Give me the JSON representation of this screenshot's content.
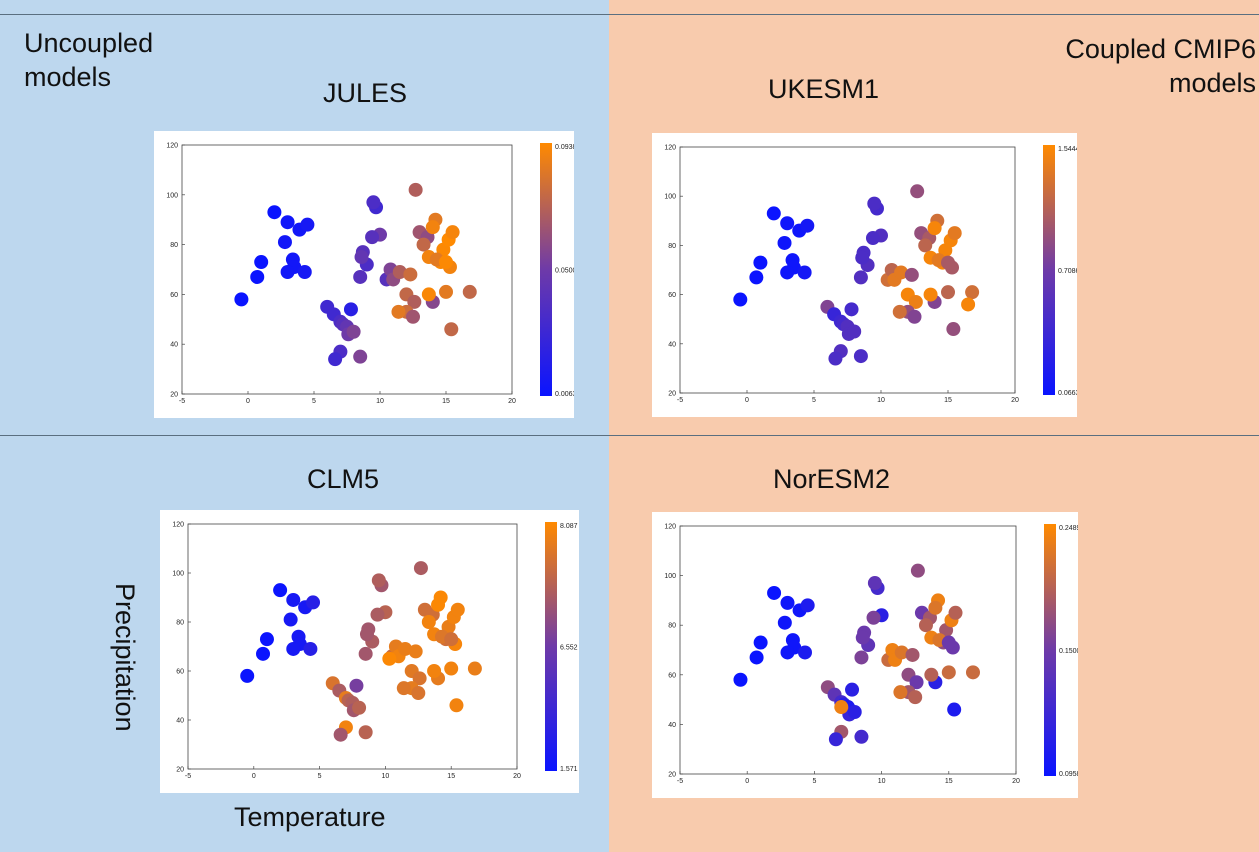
{
  "labels": {
    "uncoupled": "Uncoupled models",
    "coupled": "Coupled CMIP6 models",
    "ylabel": "Precipitation",
    "xlabel": "Temperature"
  },
  "colors": {
    "uncoupled_bg": "#bdd7ee",
    "coupled_bg": "#f8cbad",
    "low": "#0a14ff",
    "mid": "#6e3aa8",
    "high": "#ff8a00"
  },
  "chart_data": [
    {
      "type": "scatter",
      "title": "JULES",
      "xlim": [
        -5,
        20
      ],
      "ylim": [
        20,
        120
      ],
      "xticks": [
        "-5",
        "0",
        "5",
        "10",
        "15",
        "20"
      ],
      "yticks": [
        "20",
        "40",
        "60",
        "80",
        "100",
        "120"
      ],
      "colorbar": [
        "0.0063",
        "0.0500",
        "0.0938"
      ],
      "x": [
        -0.5,
        1,
        0.7,
        2,
        3,
        2.8,
        3.4,
        3.5,
        4.3,
        3,
        3.9,
        4.5,
        6,
        6.5,
        7,
        7.2,
        7.5,
        7.6,
        8,
        7,
        6.6,
        8.5,
        7.8,
        8.5,
        9,
        8.7,
        9.7,
        9.5,
        10,
        9.4,
        8.6,
        10.5,
        10.8,
        11,
        11.5,
        12,
        12.6,
        12,
        11.4,
        12.5,
        12.7,
        13,
        13.6,
        13.3,
        14.2,
        14,
        13.7,
        14.6,
        14.8,
        15.3,
        15.2,
        14.3,
        15,
        15.5,
        15,
        14,
        16.8,
        15.4,
        12.3,
        13.7
      ],
      "y": [
        58,
        73,
        67,
        93,
        89,
        81,
        74,
        71,
        69,
        69,
        86,
        88,
        55,
        52,
        49,
        48,
        47,
        44,
        45,
        37,
        34,
        35,
        54,
        67,
        72,
        77,
        95,
        97,
        84,
        83,
        75,
        66,
        70,
        66,
        69,
        60,
        57,
        53,
        53,
        51,
        102,
        85,
        83,
        80,
        90,
        87,
        75,
        73,
        78,
        71,
        82,
        74,
        61,
        85,
        73,
        57,
        61,
        46,
        68,
        60
      ],
      "c": [
        0.006,
        0.006,
        0.006,
        0.006,
        0.009,
        0.01,
        0.01,
        0.01,
        0.012,
        0.01,
        0.01,
        0.012,
        0.03,
        0.03,
        0.035,
        0.04,
        0.045,
        0.05,
        0.055,
        0.035,
        0.03,
        0.055,
        0.02,
        0.04,
        0.035,
        0.04,
        0.03,
        0.035,
        0.05,
        0.04,
        0.045,
        0.04,
        0.055,
        0.06,
        0.07,
        0.075,
        0.07,
        0.078,
        0.085,
        0.065,
        0.07,
        0.065,
        0.06,
        0.075,
        0.085,
        0.09,
        0.09,
        0.092,
        0.093,
        0.09,
        0.094,
        0.085,
        0.085,
        0.091,
        0.093,
        0.057,
        0.075,
        0.075,
        0.078,
        0.092
      ]
    },
    {
      "type": "scatter",
      "title": "UKESM1",
      "xlim": [
        -5,
        20
      ],
      "ylim": [
        20,
        120
      ],
      "xticks": [
        "-5",
        "0",
        "5",
        "10",
        "15",
        "20"
      ],
      "yticks": [
        "20",
        "40",
        "60",
        "80",
        "100",
        "120"
      ],
      "colorbar": [
        "0.0663",
        "0.7086",
        "1.5444"
      ],
      "x": [
        -0.5,
        1,
        0.7,
        2,
        3,
        2.8,
        3.4,
        3.5,
        4.3,
        3,
        3.9,
        4.5,
        6,
        6.5,
        7,
        7.2,
        7.5,
        7.6,
        8,
        7,
        6.6,
        8.5,
        7.8,
        8.5,
        9,
        8.7,
        9.7,
        9.5,
        10,
        9.4,
        8.6,
        10.5,
        10.8,
        11,
        11.5,
        12,
        12.6,
        12,
        11.4,
        12.5,
        12.7,
        13,
        13.6,
        13.3,
        14.2,
        14,
        13.7,
        14.6,
        14.8,
        15.3,
        15.2,
        14.3,
        15,
        15.5,
        15,
        14,
        16.8,
        15.4,
        12.3,
        13.7,
        16.5
      ],
      "y": [
        58,
        73,
        67,
        93,
        89,
        81,
        74,
        71,
        69,
        69,
        86,
        88,
        55,
        52,
        49,
        48,
        47,
        44,
        45,
        37,
        34,
        35,
        54,
        67,
        72,
        77,
        95,
        97,
        84,
        83,
        75,
        66,
        70,
        66,
        69,
        60,
        57,
        53,
        53,
        51,
        102,
        85,
        83,
        80,
        90,
        87,
        75,
        73,
        78,
        71,
        82,
        74,
        61,
        85,
        73,
        57,
        61,
        46,
        68,
        60,
        56
      ],
      "c": [
        0.07,
        0.07,
        0.07,
        0.07,
        0.1,
        0.1,
        0.1,
        0.1,
        0.15,
        0.1,
        0.1,
        0.15,
        0.9,
        0.4,
        0.45,
        0.5,
        0.6,
        0.6,
        0.6,
        0.6,
        0.55,
        0.55,
        0.5,
        0.6,
        0.6,
        0.55,
        0.5,
        0.55,
        0.6,
        0.55,
        0.55,
        1.3,
        1.2,
        1.4,
        1.4,
        1.5,
        1.45,
        1.0,
        1.3,
        0.9,
        1.0,
        1.0,
        1.1,
        1.2,
        1.3,
        1.5,
        1.5,
        1.5,
        1.5,
        1.1,
        1.5,
        1.4,
        1.2,
        1.4,
        1.1,
        0.9,
        1.3,
        1.0,
        1.0,
        1.5,
        1.5
      ]
    },
    {
      "type": "scatter",
      "title": "CLM5",
      "xlim": [
        -5,
        20
      ],
      "ylim": [
        20,
        120
      ],
      "xticks": [
        "-5",
        "0",
        "5",
        "10",
        "15",
        "20"
      ],
      "yticks": [
        "20",
        "40",
        "60",
        "80",
        "100",
        "120"
      ],
      "colorbar": [
        "1.571",
        "6.552",
        "8.087"
      ],
      "x": [
        -0.5,
        1,
        0.7,
        2,
        3,
        2.8,
        3.4,
        3.5,
        4.3,
        3,
        3.9,
        4.5,
        6,
        6.5,
        7,
        7.2,
        7.5,
        7.6,
        8,
        7,
        6.6,
        8.5,
        7.8,
        8.5,
        9,
        8.7,
        9.7,
        9.5,
        10,
        9.4,
        8.6,
        10.5,
        10.8,
        11,
        11.5,
        12,
        12.6,
        12,
        11.4,
        12.5,
        12.7,
        13,
        13.6,
        13.3,
        14.2,
        14,
        13.7,
        14.6,
        14.8,
        15.3,
        15.2,
        14.3,
        15,
        15.5,
        15,
        14,
        16.8,
        15.4,
        12.3,
        13.7,
        10.3
      ],
      "y": [
        58,
        73,
        67,
        93,
        89,
        81,
        74,
        71,
        69,
        69,
        86,
        88,
        55,
        52,
        49,
        48,
        47,
        44,
        45,
        37,
        34,
        35,
        54,
        67,
        72,
        77,
        95,
        97,
        84,
        83,
        75,
        66,
        70,
        66,
        69,
        60,
        57,
        53,
        53,
        51,
        102,
        85,
        83,
        80,
        90,
        87,
        75,
        73,
        78,
        71,
        82,
        74,
        61,
        85,
        73,
        57,
        61,
        46,
        68,
        60,
        65
      ],
      "c": [
        1.6,
        1.6,
        1.6,
        1.6,
        2,
        2,
        2,
        2,
        2.5,
        2,
        2,
        2.5,
        7.2,
        6.2,
        7.5,
        6.5,
        6.3,
        6,
        6.5,
        7.8,
        6,
        6.5,
        5,
        6,
        6.2,
        6,
        6,
        6.3,
        6.5,
        6.2,
        6,
        6.8,
        7.5,
        7.8,
        7.6,
        7.4,
        7.2,
        7.5,
        7.3,
        7.2,
        6.2,
        7.0,
        7.0,
        7.8,
        8.0,
        8.0,
        7.8,
        7.0,
        7.6,
        7.9,
        7.8,
        7.3,
        7.8,
        7.8,
        7.0,
        7.5,
        7.6,
        7.8,
        7.6,
        7.8,
        8.0
      ]
    },
    {
      "type": "scatter",
      "title": "NorESM2",
      "xlim": [
        -5,
        20
      ],
      "ylim": [
        20,
        120
      ],
      "xticks": [
        "-5",
        "0",
        "5",
        "10",
        "15",
        "20"
      ],
      "yticks": [
        "20",
        "40",
        "60",
        "80",
        "100",
        "120"
      ],
      "colorbar": [
        "0.0958",
        "0.1500",
        "0.2489"
      ],
      "x": [
        -0.5,
        1,
        0.7,
        2,
        3,
        2.8,
        3.4,
        3.5,
        4.3,
        3,
        3.9,
        4.5,
        6,
        6.5,
        7,
        7.2,
        7.5,
        7.6,
        8,
        7,
        6.6,
        8.5,
        7.8,
        8.5,
        9,
        8.7,
        9.7,
        9.5,
        10,
        9.4,
        8.6,
        10.5,
        10.8,
        11,
        11.5,
        12,
        12.6,
        12,
        11.4,
        12.5,
        12.7,
        13,
        13.6,
        13.3,
        14.2,
        14,
        13.7,
        14.6,
        14.8,
        15.3,
        15.2,
        14.3,
        15,
        15.5,
        15,
        14,
        16.8,
        15.4,
        12.3,
        13.7,
        7.0
      ],
      "y": [
        58,
        73,
        67,
        93,
        89,
        81,
        74,
        71,
        69,
        69,
        86,
        88,
        55,
        52,
        49,
        48,
        47,
        44,
        45,
        37,
        34,
        35,
        54,
        67,
        72,
        77,
        95,
        97,
        84,
        83,
        75,
        66,
        70,
        66,
        69,
        60,
        57,
        53,
        53,
        51,
        102,
        85,
        83,
        80,
        90,
        87,
        75,
        73,
        78,
        71,
        82,
        74,
        61,
        85,
        73,
        57,
        61,
        46,
        68,
        60,
        47
      ],
      "c": [
        0.096,
        0.096,
        0.096,
        0.096,
        0.1,
        0.1,
        0.1,
        0.1,
        0.11,
        0.1,
        0.1,
        0.11,
        0.19,
        0.16,
        0.14,
        0.12,
        0.11,
        0.13,
        0.12,
        0.2,
        0.13,
        0.14,
        0.12,
        0.18,
        0.16,
        0.17,
        0.14,
        0.16,
        0.12,
        0.18,
        0.17,
        0.22,
        0.24,
        0.24,
        0.23,
        0.19,
        0.17,
        0.2,
        0.23,
        0.21,
        0.19,
        0.17,
        0.2,
        0.21,
        0.24,
        0.23,
        0.24,
        0.19,
        0.2,
        0.17,
        0.24,
        0.23,
        0.22,
        0.21,
        0.17,
        0.12,
        0.22,
        0.11,
        0.2,
        0.21,
        0.24
      ]
    }
  ]
}
